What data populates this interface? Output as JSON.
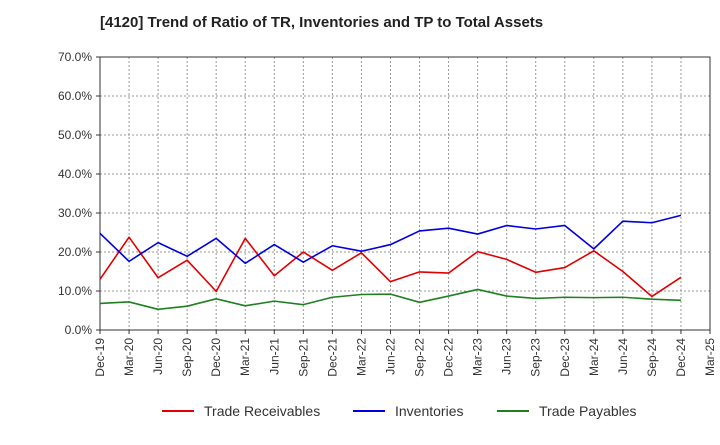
{
  "chart_data": {
    "type": "line",
    "title": "[4120]  Trend of Ratio of TR, Inventories and TP to Total Assets",
    "xlabel": "",
    "ylabel": "",
    "ylim": [
      0,
      70
    ],
    "y_ticks": [
      "0.0%",
      "10.0%",
      "20.0%",
      "30.0%",
      "40.0%",
      "50.0%",
      "60.0%",
      "70.0%"
    ],
    "x_tick_labels": [
      "Dec-19",
      "Mar-20",
      "Jun-20",
      "Sep-20",
      "Dec-20",
      "Mar-21",
      "Jun-21",
      "Sep-21",
      "Dec-21",
      "Mar-22",
      "Jun-22",
      "Sep-22",
      "Dec-22",
      "Mar-23",
      "Jun-23",
      "Sep-23",
      "Dec-23",
      "Mar-24",
      "Jun-24",
      "Sep-24",
      "Dec-24",
      "Mar-25"
    ],
    "categories": [
      "Dec-19",
      "Mar-20",
      "Jun-20",
      "Sep-20",
      "Dec-20",
      "Mar-21",
      "Jun-21",
      "Sep-21",
      "Dec-21",
      "Mar-22",
      "Jun-22",
      "Sep-22",
      "Dec-22",
      "Mar-23",
      "Jun-23",
      "Sep-23",
      "Dec-23",
      "Mar-24",
      "Jun-24",
      "Sep-24",
      "Dec-24"
    ],
    "grid": true,
    "legend_position": "bottom",
    "series": [
      {
        "name": "Trade Receivables",
        "color": "#e00000",
        "values": [
          13.0,
          23.8,
          13.4,
          17.9,
          9.9,
          23.5,
          13.9,
          20.0,
          15.3,
          19.8,
          12.4,
          14.9,
          14.6,
          20.1,
          18.1,
          14.8,
          16.0,
          20.3,
          15.0,
          8.6,
          13.5
        ]
      },
      {
        "name": "Inventories",
        "color": "#0000dd",
        "values": [
          24.8,
          17.6,
          22.4,
          18.9,
          23.5,
          17.1,
          21.9,
          17.4,
          21.6,
          20.2,
          21.9,
          25.4,
          26.1,
          24.6,
          26.8,
          25.9,
          26.8,
          20.8,
          27.9,
          27.5,
          29.4
        ]
      },
      {
        "name": "Trade Payables",
        "color": "#208020",
        "values": [
          6.8,
          7.2,
          5.3,
          6.1,
          8.0,
          6.2,
          7.4,
          6.5,
          8.4,
          9.1,
          9.2,
          7.1,
          8.7,
          10.4,
          8.7,
          8.1,
          8.4,
          8.3,
          8.4,
          7.9,
          7.6
        ]
      }
    ]
  }
}
